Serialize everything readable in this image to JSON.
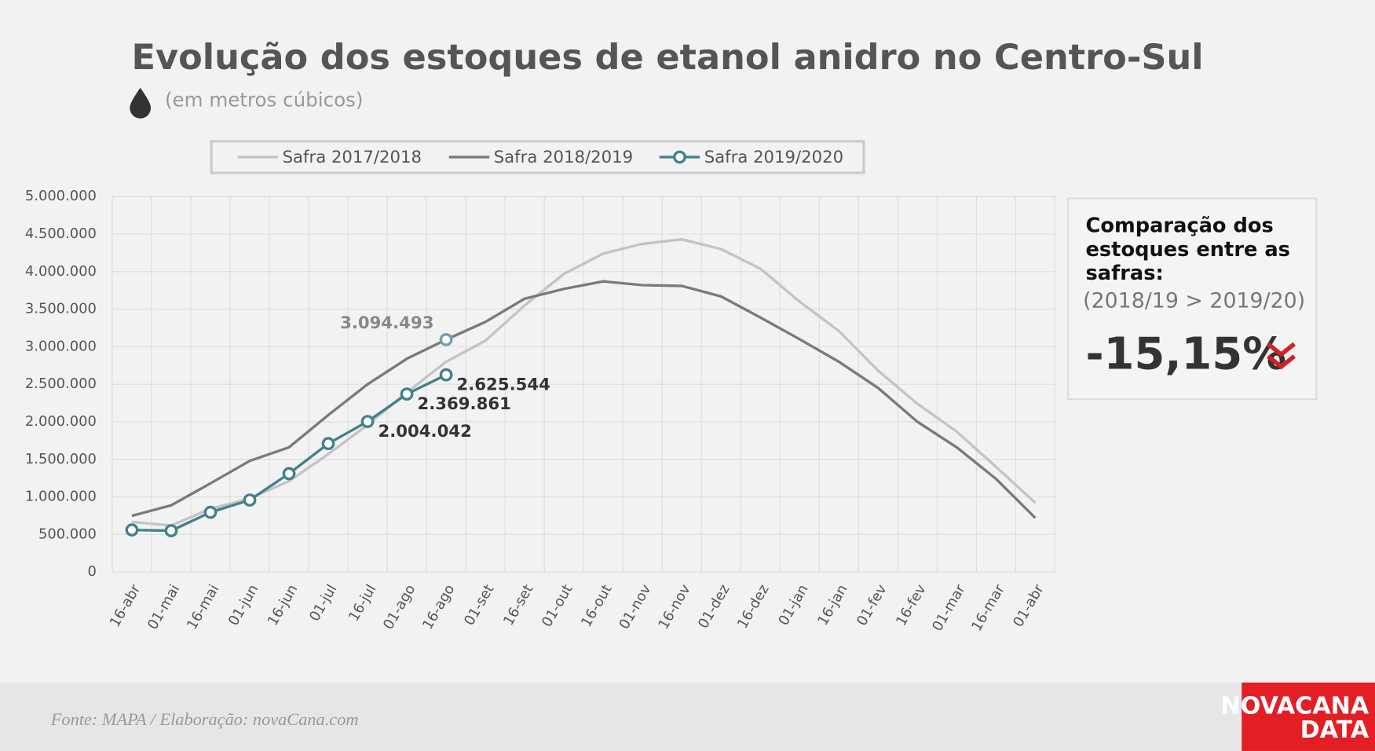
{
  "chart_data": {
    "type": "line",
    "title": "Evolução dos estoques de etanol anidro no Centro-Sul",
    "subtitle": "(em metros cúbicos)",
    "categories": [
      "16-abr",
      "01-mai",
      "16-mai",
      "01-jun",
      "16-jun",
      "01-jul",
      "16-jul",
      "01-ago",
      "16-ago",
      "01-set",
      "16-set",
      "01-out",
      "16-out",
      "01-nov",
      "16-nov",
      "01-dez",
      "16-dez",
      "01-jan",
      "16-jan",
      "01-fev",
      "16-fev",
      "01-mar",
      "16-mar",
      "01-abr"
    ],
    "series": [
      {
        "name": "Safra 2017/2018",
        "color": "#c4c4c4",
        "values": [
          666000,
          620000,
          840000,
          980000,
          1210000,
          1570000,
          1960000,
          2390000,
          2800000,
          3080000,
          3550000,
          3970000,
          4240000,
          4370000,
          4430000,
          4300000,
          4040000,
          3600000,
          3210000,
          2680000,
          2240000,
          1870000,
          1400000,
          920000
        ]
      },
      {
        "name": "Safra 2018/2019",
        "color": "#7a7a7a",
        "values": [
          748000,
          888000,
          1180000,
          1480000,
          1660000,
          2090000,
          2500000,
          2840000,
          3094493,
          3330000,
          3640000,
          3770000,
          3870000,
          3820000,
          3810000,
          3670000,
          3390000,
          3100000,
          2800000,
          2450000,
          2000000,
          1660000,
          1240000,
          720000
        ],
        "value_labels": [
          null,
          null,
          null,
          null,
          null,
          null,
          null,
          null,
          "3.094.493",
          null,
          null,
          null,
          null,
          null,
          null,
          null,
          null,
          null,
          null,
          null,
          null,
          null,
          null,
          null
        ]
      },
      {
        "name": "Safra 2019/2020",
        "color": "#44808c",
        "values": [
          560000,
          550000,
          795000,
          958000,
          1310000,
          1710000,
          2004042,
          2369861,
          2625544,
          null,
          null,
          null,
          null,
          null,
          null,
          null,
          null,
          null,
          null,
          null,
          null,
          null,
          null,
          null
        ],
        "value_labels": [
          null,
          null,
          null,
          null,
          null,
          null,
          "2.004.042",
          "2.369.861",
          "2.625.544",
          null,
          null,
          null,
          null,
          null,
          null,
          null,
          null,
          null,
          null,
          null,
          null,
          null,
          null,
          null
        ]
      }
    ],
    "ylim": [
      0,
      5000000
    ],
    "yticks": [
      0,
      {
        "value": 500000,
        "label": "500.000"
      },
      {
        "value": 1000000,
        "label": "1.000.000"
      },
      {
        "value": 1500000,
        "label": "1.500.000"
      },
      {
        "value": 2000000,
        "label": "2.000.000"
      },
      {
        "value": 2500000,
        "label": "2.500.000"
      },
      {
        "value": 3000000,
        "label": "3.000.000"
      },
      {
        "value": 3500000,
        "label": "3.500.000"
      },
      {
        "value": 4000000,
        "label": "4.000.000"
      },
      {
        "value": 4500000,
        "label": "4.500.000"
      },
      {
        "value": 5000000,
        "label": "5.000.000"
      }
    ],
    "grid": true
  },
  "panel": {
    "heading": [
      "Comparação dos",
      "estoques entre as",
      "safras:"
    ],
    "note": "(2018/19 > 2019/20)",
    "change": "-15,15%"
  },
  "footer": {
    "source": "Fonte: MAPA  / Elaboração: novaCana.com",
    "logo": [
      "NOVACANA",
      "DATA"
    ]
  }
}
